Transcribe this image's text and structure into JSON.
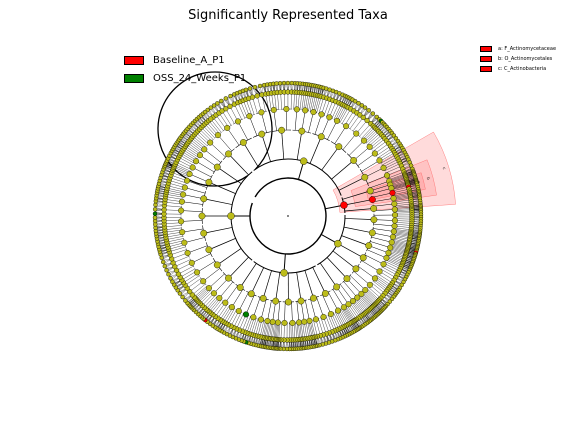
{
  "title": "Significantly Represented Taxa",
  "legend": {
    "groups": [
      {
        "label": "Baseline_A_P1",
        "color": "#ff0000"
      },
      {
        "label": "OSS_24_Weeks_P1",
        "color": "#008000"
      }
    ],
    "taxa": [
      {
        "label": "a: F_Actinomycetaceae",
        "color": "#ff0000"
      },
      {
        "label": "b: O_Actinomycetales",
        "color": "#ff0000"
      },
      {
        "label": "c: C_Actinobacteria",
        "color": "#ff0000"
      }
    ]
  },
  "highlight_labels": [
    "a",
    "b",
    "c"
  ],
  "colors": {
    "node_default": "#bcbc1a",
    "node_red": "#ff0000",
    "node_green": "#008000",
    "highlight_fill": "#ff9999",
    "edge": "#000000"
  }
}
